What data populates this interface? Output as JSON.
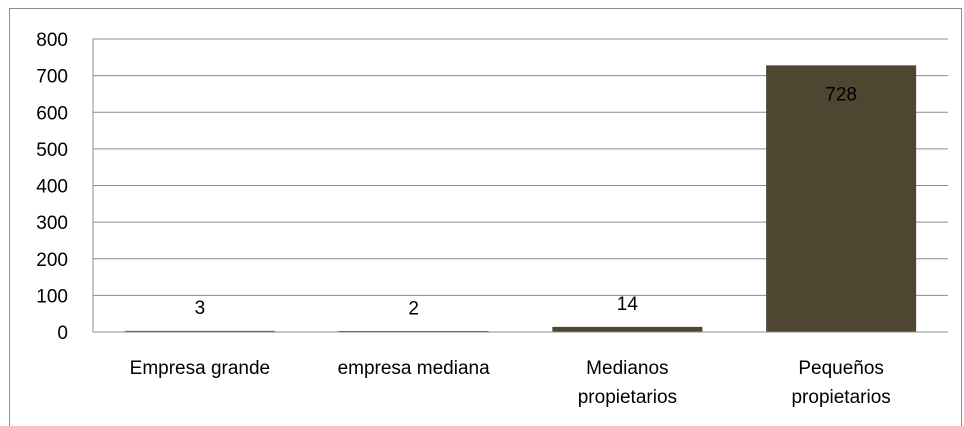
{
  "chart_data": {
    "type": "bar",
    "categories": [
      [
        "Empresa grande"
      ],
      [
        "empresa mediana"
      ],
      [
        "Medianos",
        "propietarios"
      ],
      [
        "Pequeños",
        "propietarios"
      ]
    ],
    "values": [
      3,
      2,
      14,
      728
    ],
    "data_labels": [
      "3",
      "2",
      "14",
      "728"
    ],
    "ylim": [
      0,
      800
    ],
    "yticks": [
      "0",
      "100",
      "200",
      "300",
      "400",
      "500",
      "600",
      "700",
      "800"
    ],
    "grid": true,
    "legend": "none",
    "bar_color": "#4e4630",
    "gridline_color": "#8c8c8c"
  }
}
